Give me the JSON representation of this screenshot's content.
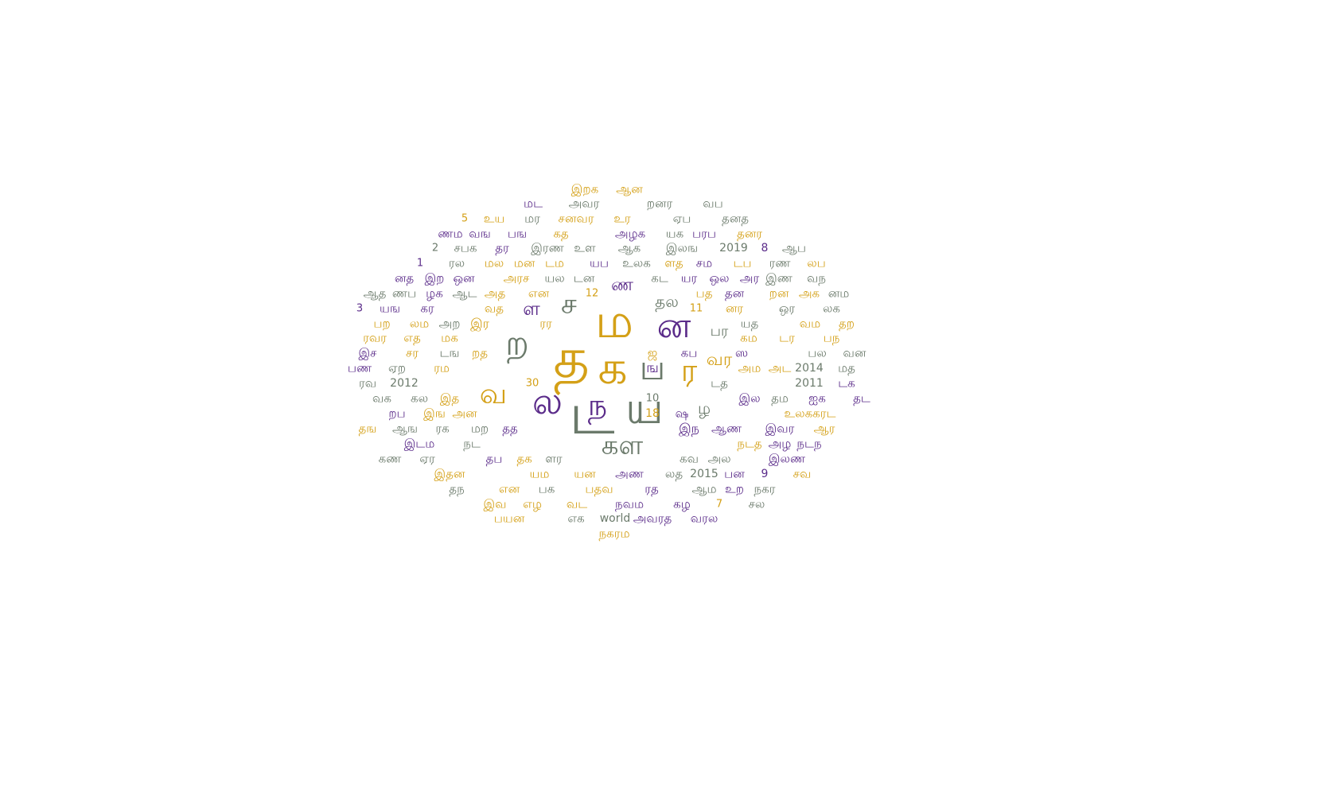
{
  "colors": {
    "gray": "#6b7a6b",
    "purple": "#5b2c8a",
    "gold": "#d4a017"
  },
  "words": [
    "இறக",
    "ஆன",
    "மட",
    "அவர",
    "றனர",
    "வப",
    "5",
    "உய",
    "மர",
    "சனவர",
    "உர",
    "ஏப",
    "தனத",
    "ணம",
    "வங",
    "பங",
    "கத",
    "அழக",
    "யக",
    "பரப",
    "தனர",
    "2",
    "சபக",
    "தர",
    "இரண",
    "உள",
    "ஆக",
    "இலங",
    "2019",
    "8",
    "ஆப",
    "1",
    "ரல",
    "மல",
    "மன",
    "டம",
    "யப",
    "உலக",
    "ளத",
    "சம",
    "டப",
    "ரண",
    "லப",
    "னத",
    "இற",
    "ஒன",
    "அரச",
    "யல",
    "டன",
    "ண",
    "கட",
    "யர",
    "ஒல",
    "அர",
    "இண",
    "வந",
    "ஆத",
    "ணப",
    "ழக",
    "ஆட",
    "அத",
    "என",
    "12",
    "ச",
    "தல",
    "பத",
    "தன",
    "றன",
    "அக",
    "னம",
    "3",
    "யங",
    "கர",
    "வத",
    "ள",
    "ம",
    "ன",
    "11",
    "னர",
    "ஒர",
    "லக",
    "பற",
    "லம",
    "அற",
    "இர",
    "ரர",
    "பர",
    "யத",
    "வம",
    "தற",
    "ரவர",
    "எத",
    "மக",
    "ற",
    "கம",
    "டர",
    "பந",
    "இச",
    "சர",
    "டங",
    "றத",
    "த",
    "ஜ",
    "கப",
    "ஸ",
    "பல",
    "வன",
    "பண",
    "ஏற",
    "ரம",
    "க",
    "ங",
    "ப",
    "ர",
    "வர",
    "அம",
    "அட",
    "2014",
    "மத",
    "ரவ",
    "2012",
    "டத",
    "2011",
    "டக",
    "வக",
    "கல",
    "இத",
    "30",
    "வ",
    "ல",
    "ட",
    "ந",
    "ய",
    "10",
    "இல",
    "தம",
    "ஐக",
    "தட",
    "றப",
    "இங",
    "அன",
    "18",
    "ஷ",
    "ழ",
    "உலககரட",
    "தங",
    "ஆங",
    "ரக",
    "மற",
    "தத",
    "இந",
    "ஆண",
    "இவர",
    "ஆர",
    "இடம",
    "நட",
    "நடத",
    "அழ",
    "நடந",
    "கண",
    "ஏர",
    "தப",
    "தக",
    "ளர",
    "கள",
    "கவ",
    "அல",
    "இலண",
    "இதன",
    "யம",
    "யன",
    "அண",
    "லத",
    "2015",
    "பன",
    "9",
    "சவ",
    "தந",
    "என",
    "பக",
    "பதவ",
    "ரத",
    "ஆம",
    "உற",
    "நகர",
    "இவ",
    "எழ",
    "வட",
    "நவம",
    "கழ",
    "7",
    "சல",
    "பயன",
    "எக",
    "world",
    "அவரத",
    "வரல",
    "நகரம"
  ]
}
